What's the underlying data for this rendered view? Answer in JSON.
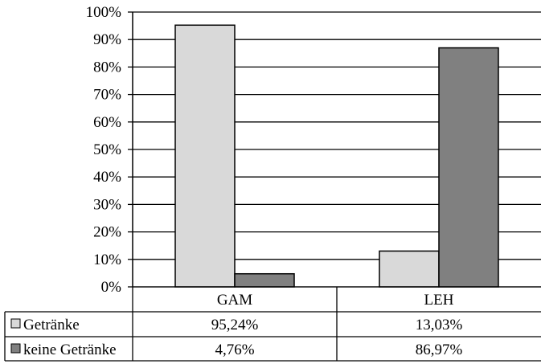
{
  "chart_data": {
    "type": "bar",
    "categories": [
      "GAM",
      "LEH"
    ],
    "series": [
      {
        "name": "Getränke",
        "values": [
          95.24,
          13.03
        ],
        "color": "#d9d9d9",
        "table_values": [
          "95,24%",
          "13,03%"
        ]
      },
      {
        "name": "keine Getränke",
        "values": [
          4.76,
          86.97
        ],
        "color": "#808080",
        "table_values": [
          "4,76%",
          "86,97%"
        ]
      }
    ],
    "y_ticks": [
      "0%",
      "10%",
      "20%",
      "30%",
      "40%",
      "50%",
      "60%",
      "70%",
      "80%",
      "90%",
      "100%"
    ],
    "ylim": [
      0,
      100
    ],
    "grid": true,
    "legend": "data-table-left"
  }
}
